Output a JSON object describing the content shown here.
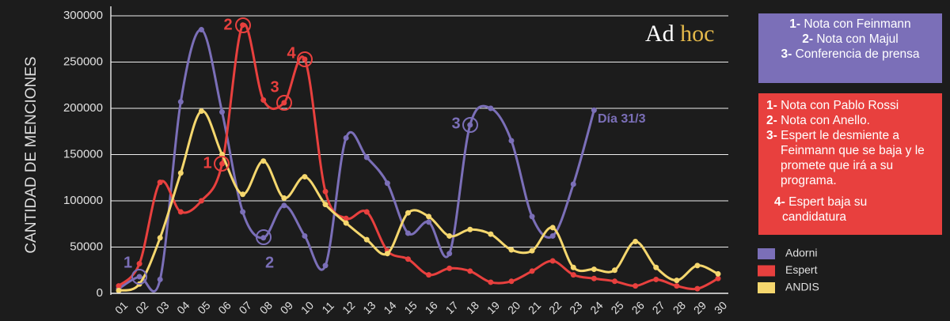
{
  "chart_data": {
    "type": "line",
    "y_axis_label": "CANTIDAD DE MENCIONES",
    "categories": [
      "01",
      "02",
      "03",
      "04",
      "05",
      "06",
      "07",
      "08",
      "09",
      "10",
      "11",
      "12",
      "13",
      "14",
      "15",
      "16",
      "17",
      "18",
      "19",
      "20",
      "21",
      "22",
      "23",
      "24",
      "25",
      "26",
      "27",
      "28",
      "29",
      "30"
    ],
    "ylim": [
      0,
      300000
    ],
    "yticks": [
      0,
      50000,
      100000,
      150000,
      200000,
      250000,
      300000
    ],
    "grid": true,
    "series": [
      {
        "name": "Adorni",
        "color": "#7b6fb8",
        "values": [
          5000,
          18000,
          15000,
          207000,
          285000,
          196000,
          88000,
          60000,
          95000,
          62000,
          30000,
          168000,
          147000,
          119000,
          65000,
          77000,
          43000,
          182000,
          200000,
          165000,
          83000,
          62000,
          118000,
          198000,
          null,
          null,
          null,
          null,
          null,
          null
        ]
      },
      {
        "name": "Espert",
        "color": "#e8403e",
        "values": [
          8000,
          32000,
          120000,
          88000,
          100000,
          140000,
          290000,
          209000,
          206000,
          253000,
          110000,
          81000,
          88000,
          46000,
          37000,
          20000,
          27000,
          24000,
          12000,
          13000,
          24000,
          35000,
          20000,
          16000,
          13000,
          8000,
          15000,
          8000,
          5000,
          16000
        ]
      },
      {
        "name": "ANDIS",
        "color": "#f5d76e",
        "values": [
          3000,
          10000,
          60000,
          130000,
          197000,
          150000,
          107000,
          143000,
          103000,
          126000,
          96000,
          76000,
          58000,
          43000,
          87000,
          83000,
          62000,
          69000,
          64000,
          47000,
          46000,
          71000,
          28000,
          26000,
          25000,
          56000,
          28000,
          14000,
          30000,
          21000
        ]
      }
    ],
    "annotations": [
      "1",
      "2",
      "3",
      "Día 31/3",
      "1",
      "2",
      "3",
      "4"
    ]
  },
  "logo": {
    "first": "Ad",
    "second": "hoc"
  },
  "adorni_notes": [
    {
      "number": "1-",
      "text": "Nota con Feinmann"
    },
    {
      "number": "2-",
      "text": "Nota con Majul"
    },
    {
      "number": "3-",
      "text": "Conferencia de prensa"
    }
  ],
  "espert_notes": [
    {
      "number": "1-",
      "text": "Nota con Pablo Rossi"
    },
    {
      "number": "2-",
      "text": "Nota con Anello."
    },
    {
      "number": "3-",
      "text": "Espert le desmiente a Feinmann que se baja y le promete que irá a su programa."
    },
    {
      "number": "4-",
      "text": "Espert baja su candidatura"
    }
  ]
}
